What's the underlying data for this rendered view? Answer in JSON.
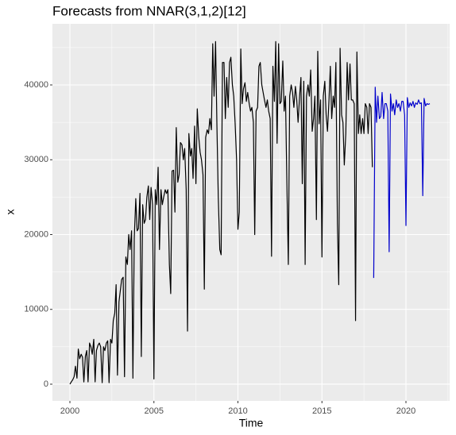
{
  "chart_data": {
    "type": "line",
    "title": "Forecasts from NNAR(3,1,2)[12]",
    "x_label": "Time",
    "y_label": "x",
    "xlim": [
      1998.96,
      2022.6
    ],
    "ylim": [
      -2230,
      48170
    ],
    "xticks": [
      2000,
      2005,
      2010,
      2015,
      2020
    ],
    "yticks": [
      0,
      10000,
      20000,
      30000,
      40000
    ],
    "xminor_ticks": [
      2002.5,
      2007.5,
      2012.5,
      2017.5,
      2022.5
    ],
    "yminor_ticks": [
      5000,
      15000,
      25000,
      35000,
      45000
    ],
    "grid": true,
    "x": [
      2000.0,
      2000.08,
      2000.17,
      2000.25,
      2000.33,
      2000.42,
      2000.5,
      2000.58,
      2000.67,
      2000.75,
      2000.83,
      2000.92,
      2001.0,
      2001.08,
      2001.17,
      2001.25,
      2001.33,
      2001.42,
      2001.5,
      2001.58,
      2001.67,
      2001.75,
      2001.83,
      2001.92,
      2002.0,
      2002.08,
      2002.17,
      2002.25,
      2002.33,
      2002.42,
      2002.5,
      2002.58,
      2002.67,
      2002.75,
      2002.83,
      2002.92,
      2003.0,
      2003.08,
      2003.17,
      2003.25,
      2003.33,
      2003.42,
      2003.5,
      2003.58,
      2003.67,
      2003.75,
      2003.83,
      2003.92,
      2004.0,
      2004.08,
      2004.17,
      2004.25,
      2004.33,
      2004.42,
      2004.5,
      2004.58,
      2004.67,
      2004.75,
      2004.83,
      2004.92,
      2005.0,
      2005.08,
      2005.17,
      2005.25,
      2005.33,
      2005.42,
      2005.5,
      2005.58,
      2005.67,
      2005.75,
      2005.83,
      2005.92,
      2006.0,
      2006.08,
      2006.17,
      2006.25,
      2006.33,
      2006.42,
      2006.5,
      2006.58,
      2006.67,
      2006.75,
      2006.83,
      2006.92,
      2007.0,
      2007.08,
      2007.17,
      2007.25,
      2007.33,
      2007.42,
      2007.5,
      2007.58,
      2007.67,
      2007.75,
      2007.83,
      2007.92,
      2008.0,
      2008.08,
      2008.17,
      2008.25,
      2008.33,
      2008.42,
      2008.5,
      2008.58,
      2008.67,
      2008.75,
      2008.83,
      2008.92,
      2009.0,
      2009.08,
      2009.17,
      2009.25,
      2009.33,
      2009.42,
      2009.5,
      2009.58,
      2009.67,
      2009.75,
      2009.83,
      2009.92,
      2010.0,
      2010.08,
      2010.17,
      2010.25,
      2010.33,
      2010.42,
      2010.5,
      2010.58,
      2010.67,
      2010.75,
      2010.83,
      2010.92,
      2011.0,
      2011.08,
      2011.17,
      2011.25,
      2011.33,
      2011.42,
      2011.5,
      2011.58,
      2011.67,
      2011.75,
      2011.83,
      2011.92,
      2012.0,
      2012.08,
      2012.17,
      2012.25,
      2012.33,
      2012.42,
      2012.5,
      2012.58,
      2012.67,
      2012.75,
      2012.83,
      2012.92,
      2013.0,
      2013.08,
      2013.17,
      2013.25,
      2013.33,
      2013.42,
      2013.5,
      2013.58,
      2013.67,
      2013.75,
      2013.83,
      2013.92,
      2014.0,
      2014.08,
      2014.17,
      2014.25,
      2014.33,
      2014.42,
      2014.5,
      2014.58,
      2014.67,
      2014.75,
      2014.83,
      2014.92,
      2015.0,
      2015.08,
      2015.17,
      2015.25,
      2015.33,
      2015.42,
      2015.5,
      2015.58,
      2015.67,
      2015.75,
      2015.83,
      2015.92,
      2016.0,
      2016.08,
      2016.17,
      2016.25,
      2016.33,
      2016.42,
      2016.5,
      2016.58,
      2016.67,
      2016.75,
      2016.83,
      2016.92,
      2017.0,
      2017.08,
      2017.17,
      2017.25,
      2017.33,
      2017.42,
      2017.5,
      2017.58,
      2017.67,
      2017.75,
      2017.83,
      2017.92,
      2018.0,
      2018.08,
      2018.17,
      2018.25,
      2018.33,
      2018.42,
      2018.5,
      2018.58,
      2018.67,
      2018.75,
      2018.83,
      2018.92,
      2019.0,
      2019.08,
      2019.17,
      2019.25,
      2019.33,
      2019.42,
      2019.5,
      2019.58,
      2019.67,
      2019.75,
      2019.83,
      2019.92,
      2020.0,
      2020.08,
      2020.17,
      2020.25,
      2020.33,
      2020.42,
      2020.5,
      2020.58,
      2020.67,
      2020.75,
      2020.83,
      2020.92,
      2021.0,
      2021.08,
      2021.17,
      2021.25,
      2021.33,
      2021.42
    ],
    "series": [
      {
        "color": "#000000",
        "values": [
          0,
          300,
          600,
          1000,
          2400,
          800,
          4700,
          3400,
          4000,
          3600,
          300,
          3700,
          4500,
          300,
          5500,
          5000,
          4000,
          6000,
          300,
          4500,
          5200,
          5500,
          5000,
          200,
          5000,
          4500,
          5500,
          5800,
          200,
          6000,
          5500,
          8500,
          9500,
          13300,
          1200,
          11000,
          12500,
          14000,
          14300,
          1000,
          17000,
          16000,
          20000,
          18000,
          20500,
          800,
          19500,
          24800,
          20500,
          20800,
          25500,
          3700,
          24000,
          21500,
          22000,
          25000,
          26500,
          22000,
          26300,
          24000,
          700,
          26000,
          24000,
          29000,
          18000,
          26000,
          24000,
          25000,
          26000,
          25500,
          26000,
          16000,
          12100,
          28500,
          28600,
          23000,
          34300,
          27000,
          28000,
          32300,
          32000,
          30000,
          31500,
          26000,
          7100,
          33500,
          30500,
          31500,
          27500,
          34500,
          26800,
          36800,
          33000,
          31000,
          30000,
          28000,
          12700,
          33000,
          34000,
          33500,
          35500,
          34000,
          45500,
          38500,
          45800,
          34500,
          25000,
          18000,
          17300,
          43000,
          43000,
          35500,
          41000,
          37000,
          43000,
          43700,
          40000,
          38500,
          35000,
          30000,
          20700,
          23000,
          44800,
          37500,
          39500,
          40300,
          37800,
          39000,
          37500,
          36500,
          37000,
          35000,
          20000,
          36500,
          37000,
          42500,
          43000,
          40000,
          39000,
          38000,
          37000,
          38000,
          36500,
          35500,
          17100,
          42500,
          37800,
          45800,
          32200,
          45500,
          37500,
          37800,
          43200,
          36500,
          38500,
          26000,
          16000,
          38500,
          40000,
          39000,
          37000,
          39800,
          38000,
          35000,
          38500,
          41000,
          26800,
          40500,
          16000,
          38500,
          40000,
          38500,
          42000,
          33800,
          35500,
          38500,
          22000,
          44500,
          34800,
          38000,
          17000,
          38500,
          40500,
          36000,
          33800,
          38000,
          42500,
          35500,
          38500,
          37000,
          43000,
          21500,
          13300,
          44900,
          36000,
          35000,
          29300,
          33500,
          43000,
          38000,
          42800,
          38000,
          38000,
          37500,
          8500,
          44400,
          33500,
          36000,
          33500,
          35500,
          33500,
          37500,
          37000,
          33500,
          37500,
          37000,
          29000,
          null,
          null,
          null,
          null,
          null,
          null,
          null,
          null,
          null,
          null,
          null,
          null,
          null,
          null,
          null,
          null,
          null,
          null,
          null,
          null,
          null,
          null,
          null,
          null,
          null,
          null,
          null,
          null,
          null,
          null,
          null,
          null,
          null,
          null,
          null,
          null,
          null,
          null,
          null,
          null,
          null
        ]
      },
      {
        "color": "#0000cc",
        "values": [
          null,
          null,
          null,
          null,
          null,
          null,
          null,
          null,
          null,
          null,
          null,
          null,
          null,
          null,
          null,
          null,
          null,
          null,
          null,
          null,
          null,
          null,
          null,
          null,
          null,
          null,
          null,
          null,
          null,
          null,
          null,
          null,
          null,
          null,
          null,
          null,
          null,
          null,
          null,
          null,
          null,
          null,
          null,
          null,
          null,
          null,
          null,
          null,
          null,
          null,
          null,
          null,
          null,
          null,
          null,
          null,
          null,
          null,
          null,
          null,
          null,
          null,
          null,
          null,
          null,
          null,
          null,
          null,
          null,
          null,
          null,
          null,
          null,
          null,
          null,
          null,
          null,
          null,
          null,
          null,
          null,
          null,
          null,
          null,
          null,
          null,
          null,
          null,
          null,
          null,
          null,
          null,
          null,
          null,
          null,
          null,
          null,
          null,
          null,
          null,
          null,
          null,
          null,
          null,
          null,
          null,
          null,
          null,
          null,
          null,
          null,
          null,
          null,
          null,
          null,
          null,
          null,
          null,
          null,
          null,
          null,
          null,
          null,
          null,
          null,
          null,
          null,
          null,
          null,
          null,
          null,
          null,
          null,
          null,
          null,
          null,
          null,
          null,
          null,
          null,
          null,
          null,
          null,
          null,
          null,
          null,
          null,
          null,
          null,
          null,
          null,
          null,
          null,
          null,
          null,
          null,
          null,
          null,
          null,
          null,
          null,
          null,
          null,
          null,
          null,
          null,
          null,
          null,
          null,
          null,
          null,
          null,
          null,
          null,
          null,
          null,
          null,
          null,
          null,
          null,
          null,
          null,
          null,
          null,
          null,
          null,
          null,
          null,
          null,
          null,
          null,
          null,
          null,
          null,
          null,
          null,
          null,
          null,
          null,
          null,
          null,
          null,
          null,
          null,
          null,
          null,
          null,
          null,
          null,
          null,
          null,
          null,
          null,
          null,
          null,
          null,
          null,
          14200,
          39700,
          35000,
          38500,
          35500,
          35800,
          39000,
          35500,
          37500,
          37500,
          36500,
          17700,
          38800,
          36500,
          37500,
          36000,
          38000,
          37000,
          37500,
          36500,
          37800,
          37800,
          36000,
          21200,
          38300,
          37000,
          37600,
          37200,
          37800,
          37000,
          37600,
          37400,
          38000,
          37500,
          37600,
          25200,
          38200,
          37200,
          37500,
          37400,
          37500
        ]
      }
    ]
  }
}
